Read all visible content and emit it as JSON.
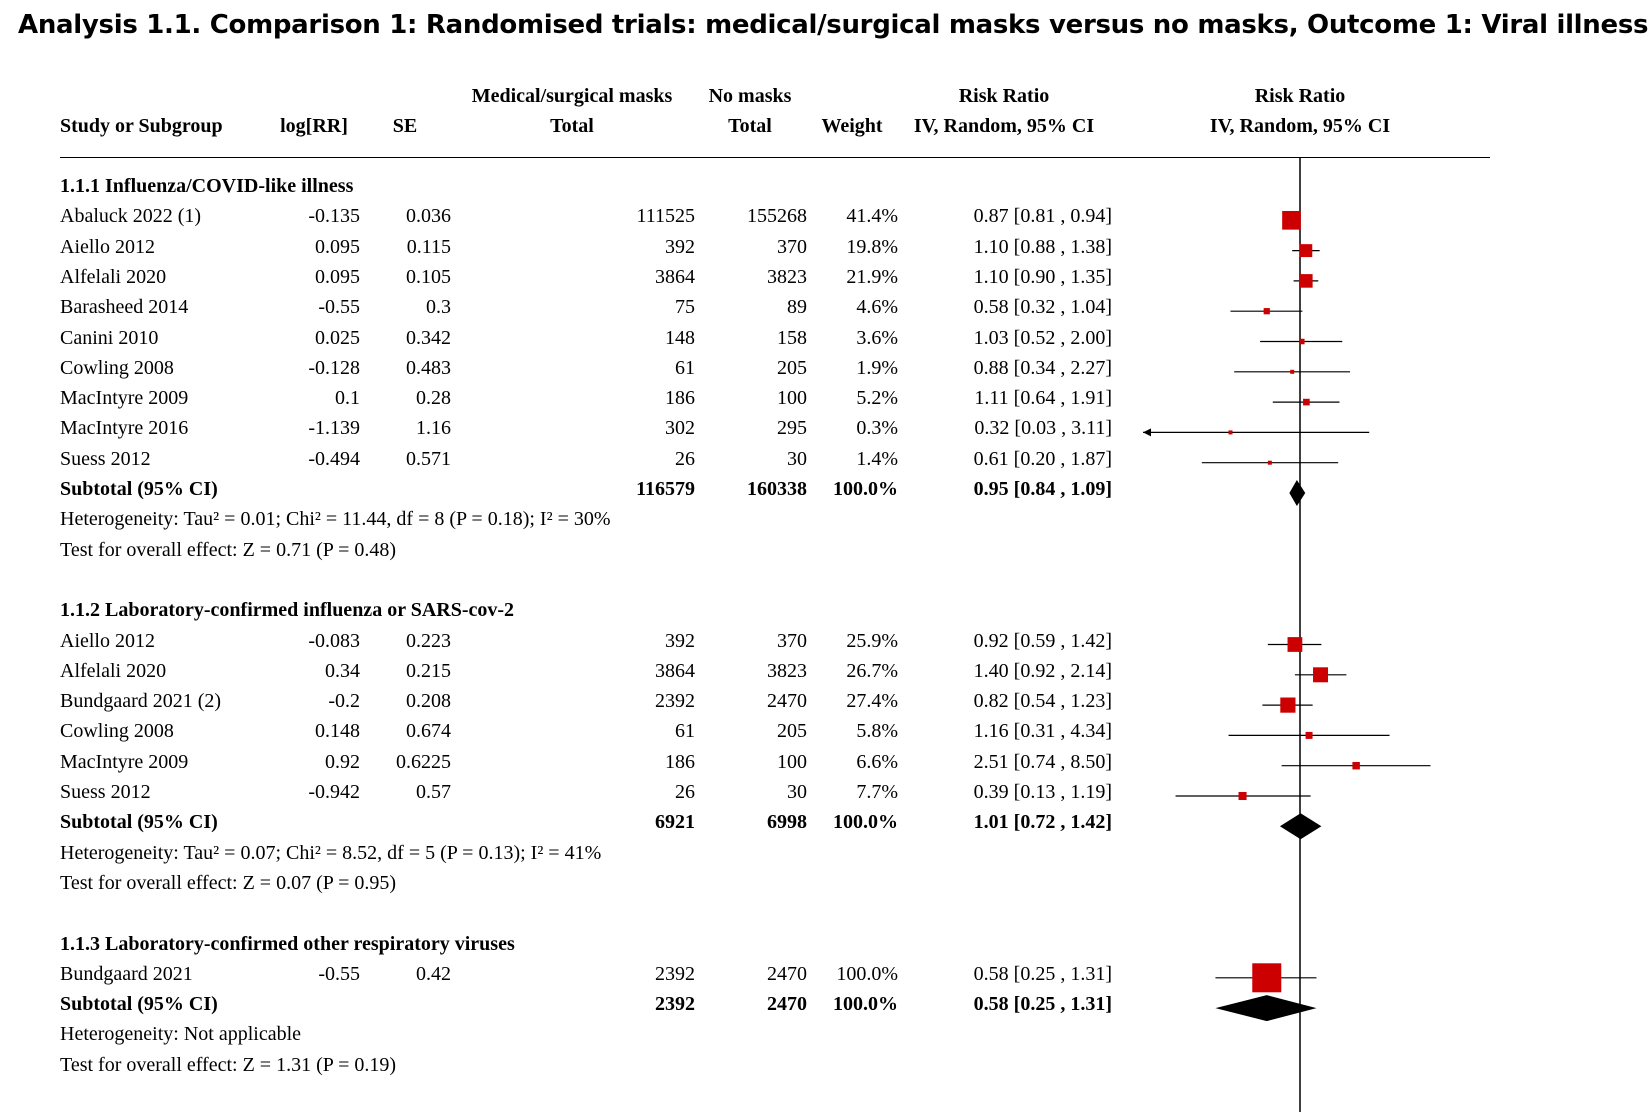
{
  "title": "Analysis 1.1.   Comparison 1: Randomised trials: medical/surgical masks versus no masks, Outcome 1: Viral illness",
  "header": {
    "study": "Study or Subgroup",
    "logrr": "log[RR]",
    "se": "SE",
    "masks_top": "Medical/surgical masks",
    "masks_bottom": "Total",
    "nomasks_top": "No masks",
    "nomasks_bottom": "Total",
    "weight": "Weight",
    "rr_top": "Risk Ratio",
    "rr_bottom": "IV, Random, 95% CI",
    "plot_top": "Risk Ratio",
    "plot_bottom": "IV, Random, 95% CI"
  },
  "colors": {
    "study_marker": "#cc0000",
    "diamond": "#000000"
  },
  "chart_data": {
    "type": "forest",
    "scale": "log",
    "null_value": 1.0,
    "xlim": [
      0.2,
      5
    ],
    "groups": [
      {
        "heading": "1.1.1 Influenza/COVID-like illness",
        "studies": [
          {
            "name": "Abaluck 2022 (1)",
            "logrr": "-0.135",
            "se": "0.036",
            "masks_total": "111525",
            "nomasks_total": "155268",
            "weight": "41.4%",
            "rr_text": "0.87 [0.81 , 0.94]",
            "rr": 0.87,
            "lo": 0.81,
            "hi": 0.94,
            "w": 41.4
          },
          {
            "name": "Aiello 2012",
            "logrr": "0.095",
            "se": "0.115",
            "masks_total": "392",
            "nomasks_total": "370",
            "weight": "19.8%",
            "rr_text": "1.10 [0.88 , 1.38]",
            "rr": 1.1,
            "lo": 0.88,
            "hi": 1.38,
            "w": 19.8
          },
          {
            "name": "Alfelali 2020",
            "logrr": "0.095",
            "se": "0.105",
            "masks_total": "3864",
            "nomasks_total": "3823",
            "weight": "21.9%",
            "rr_text": "1.10 [0.90 , 1.35]",
            "rr": 1.1,
            "lo": 0.9,
            "hi": 1.35,
            "w": 21.9
          },
          {
            "name": "Barasheed 2014",
            "logrr": "-0.55",
            "se": "0.3",
            "masks_total": "75",
            "nomasks_total": "89",
            "weight": "4.6%",
            "rr_text": "0.58 [0.32 , 1.04]",
            "rr": 0.58,
            "lo": 0.32,
            "hi": 1.04,
            "w": 4.6
          },
          {
            "name": "Canini 2010",
            "logrr": "0.025",
            "se": "0.342",
            "masks_total": "148",
            "nomasks_total": "158",
            "weight": "3.6%",
            "rr_text": "1.03 [0.52 , 2.00]",
            "rr": 1.03,
            "lo": 0.52,
            "hi": 2.0,
            "w": 3.6
          },
          {
            "name": "Cowling 2008",
            "logrr": "-0.128",
            "se": "0.483",
            "masks_total": "61",
            "nomasks_total": "205",
            "weight": "1.9%",
            "rr_text": "0.88 [0.34 , 2.27]",
            "rr": 0.88,
            "lo": 0.34,
            "hi": 2.27,
            "w": 1.9
          },
          {
            "name": "MacIntyre 2009",
            "logrr": "0.1",
            "se": "0.28",
            "masks_total": "186",
            "nomasks_total": "100",
            "weight": "5.2%",
            "rr_text": "1.11 [0.64 , 1.91]",
            "rr": 1.11,
            "lo": 0.64,
            "hi": 1.91,
            "w": 5.2
          },
          {
            "name": "MacIntyre 2016",
            "logrr": "-1.139",
            "se": "1.16",
            "masks_total": "302",
            "nomasks_total": "295",
            "weight": "0.3%",
            "rr_text": "0.32 [0.03 , 3.11]",
            "rr": 0.32,
            "lo": 0.03,
            "hi": 3.11,
            "w": 0.3
          },
          {
            "name": "Suess 2012",
            "logrr": "-0.494",
            "se": "0.571",
            "masks_total": "26",
            "nomasks_total": "30",
            "weight": "1.4%",
            "rr_text": "0.61 [0.20 , 1.87]",
            "rr": 0.61,
            "lo": 0.2,
            "hi": 1.87,
            "w": 1.4
          }
        ],
        "subtotal": {
          "label": "Subtotal (95% CI)",
          "masks_total": "116579",
          "nomasks_total": "160338",
          "weight": "100.0%",
          "rr_text": "0.95 [0.84 , 1.09]",
          "rr": 0.95,
          "lo": 0.84,
          "hi": 1.09
        },
        "heterogeneity": "Heterogeneity: Tau² = 0.01; Chi² = 11.44, df = 8 (P = 0.18); I² = 30%",
        "overall": "Test for overall effect: Z = 0.71 (P = 0.48)"
      },
      {
        "heading": "1.1.2 Laboratory-confirmed influenza or SARS-cov-2",
        "studies": [
          {
            "name": "Aiello 2012",
            "logrr": "-0.083",
            "se": "0.223",
            "masks_total": "392",
            "nomasks_total": "370",
            "weight": "25.9%",
            "rr_text": "0.92 [0.59 , 1.42]",
            "rr": 0.92,
            "lo": 0.59,
            "hi": 1.42,
            "w": 25.9
          },
          {
            "name": "Alfelali 2020",
            "logrr": "0.34",
            "se": "0.215",
            "masks_total": "3864",
            "nomasks_total": "3823",
            "weight": "26.7%",
            "rr_text": "1.40 [0.92 , 2.14]",
            "rr": 1.4,
            "lo": 0.92,
            "hi": 2.14,
            "w": 26.7
          },
          {
            "name": "Bundgaard 2021 (2)",
            "logrr": "-0.2",
            "se": "0.208",
            "masks_total": "2392",
            "nomasks_total": "2470",
            "weight": "27.4%",
            "rr_text": "0.82 [0.54 , 1.23]",
            "rr": 0.82,
            "lo": 0.54,
            "hi": 1.23,
            "w": 27.4
          },
          {
            "name": "Cowling 2008",
            "logrr": "0.148",
            "se": "0.674",
            "masks_total": "61",
            "nomasks_total": "205",
            "weight": "5.8%",
            "rr_text": "1.16 [0.31 , 4.34]",
            "rr": 1.16,
            "lo": 0.31,
            "hi": 4.34,
            "w": 5.8
          },
          {
            "name": "MacIntyre 2009",
            "logrr": "0.92",
            "se": "0.6225",
            "masks_total": "186",
            "nomasks_total": "100",
            "weight": "6.6%",
            "rr_text": "2.51 [0.74 , 8.50]",
            "rr": 2.51,
            "lo": 0.74,
            "hi": 8.5,
            "w": 6.6
          },
          {
            "name": "Suess 2012",
            "logrr": "-0.942",
            "se": "0.57",
            "masks_total": "26",
            "nomasks_total": "30",
            "weight": "7.7%",
            "rr_text": "0.39 [0.13 , 1.19]",
            "rr": 0.39,
            "lo": 0.13,
            "hi": 1.19,
            "w": 7.7
          }
        ],
        "subtotal": {
          "label": "Subtotal (95% CI)",
          "masks_total": "6921",
          "nomasks_total": "6998",
          "weight": "100.0%",
          "rr_text": "1.01 [0.72 , 1.42]",
          "rr": 1.01,
          "lo": 0.72,
          "hi": 1.42
        },
        "heterogeneity": "Heterogeneity: Tau² = 0.07; Chi² = 8.52, df = 5 (P = 0.13); I² = 41%",
        "overall": "Test for overall effect: Z = 0.07 (P = 0.95)"
      },
      {
        "heading": "1.1.3 Laboratory-confirmed other respiratory viruses",
        "studies": [
          {
            "name": "Bundgaard 2021",
            "logrr": "-0.55",
            "se": "0.42",
            "masks_total": "2392",
            "nomasks_total": "2470",
            "weight": "100.0%",
            "rr_text": "0.58 [0.25 , 1.31]",
            "rr": 0.58,
            "lo": 0.25,
            "hi": 1.31,
            "w": 100.0
          }
        ],
        "subtotal": {
          "label": "Subtotal (95% CI)",
          "masks_total": "2392",
          "nomasks_total": "2470",
          "weight": "100.0%",
          "rr_text": "0.58 [0.25 , 1.31]",
          "rr": 0.58,
          "lo": 0.25,
          "hi": 1.31
        },
        "heterogeneity": "Heterogeneity: Not applicable",
        "overall": "Test for overall effect: Z = 1.31 (P = 0.19)"
      }
    ]
  }
}
